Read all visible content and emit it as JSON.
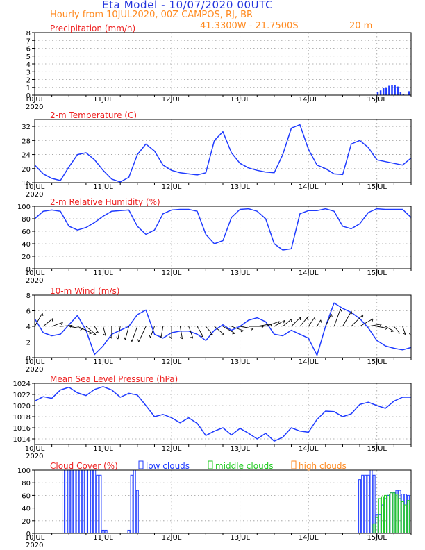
{
  "header": {
    "title": "Eta Model - 10/07/2020 00UTC",
    "subtitle": "Hourly from 10JUL2020, 00Z  CAMPOS, RJ, BR",
    "location": "41.3300W - 21.7500S",
    "elevation": "20  m"
  },
  "colors": {
    "title": "#2233dd",
    "subtitle": "#ff8a20",
    "panel_title": "#ee2222",
    "series": "#1f3bff",
    "grid": "#999999",
    "low_clouds": "#1f3bff",
    "middle_clouds": "#22cc22",
    "high_clouds": "#ff8a20"
  },
  "x_axis": {
    "ticks": [
      "10JUL",
      "11JUL",
      "12JUL",
      "13JUL",
      "14JUL",
      "15JUL"
    ],
    "year": "2020",
    "start_hour": 0,
    "end_hour": 132
  },
  "chart_data": [
    {
      "type": "bar",
      "title": "Precipitation (mm/h)",
      "ylim": [
        0,
        8
      ],
      "yticks": [
        0,
        1,
        2,
        3,
        4,
        5,
        6,
        7,
        8
      ],
      "x_hours": [
        120,
        121,
        122,
        123,
        124,
        125,
        126,
        127,
        128,
        129,
        130,
        131
      ],
      "values": [
        0.4,
        0.6,
        0.9,
        1.0,
        1.2,
        1.3,
        1.3,
        1.1,
        0.4,
        0.1,
        0.0,
        0.5
      ]
    },
    {
      "type": "line",
      "title": "2-m Temperature (C)",
      "ylim": [
        16,
        34
      ],
      "yticks": [
        16,
        20,
        24,
        28,
        32
      ],
      "x_hours": [
        0,
        3,
        6,
        9,
        12,
        15,
        18,
        21,
        24,
        27,
        30,
        33,
        36,
        39,
        42,
        45,
        48,
        51,
        54,
        57,
        60,
        63,
        66,
        69,
        72,
        75,
        78,
        81,
        84,
        87,
        90,
        93,
        96,
        99,
        102,
        105,
        108,
        111,
        114,
        117,
        120,
        123,
        126,
        129,
        132
      ],
      "values": [
        21,
        18.5,
        17.2,
        16.6,
        20.5,
        24,
        24.5,
        22.5,
        19.5,
        17,
        16.2,
        17.5,
        24,
        27,
        25,
        21,
        19.5,
        18.8,
        18.5,
        18.2,
        18.8,
        28,
        30.5,
        24.5,
        21.5,
        20.2,
        19.5,
        19,
        18.8,
        24,
        31.5,
        32.5,
        25.5,
        21,
        20,
        18.5,
        18.3,
        27,
        28,
        26,
        22.5,
        22,
        21.5,
        21,
        23
      ]
    },
    {
      "type": "line",
      "title": "2-m Relative Humidity (%)",
      "ylim": [
        0,
        100
      ],
      "yticks": [
        0,
        20,
        40,
        60,
        80,
        100
      ],
      "x_hours": [
        0,
        3,
        6,
        9,
        12,
        15,
        18,
        21,
        24,
        27,
        30,
        33,
        36,
        39,
        42,
        45,
        48,
        51,
        54,
        57,
        60,
        63,
        66,
        69,
        72,
        75,
        78,
        81,
        84,
        87,
        90,
        93,
        96,
        99,
        102,
        105,
        108,
        111,
        114,
        117,
        120,
        123,
        126,
        129,
        132
      ],
      "values": [
        80,
        92,
        94,
        92,
        68,
        62,
        66,
        74,
        84,
        92,
        93,
        94,
        68,
        55,
        62,
        88,
        94,
        95,
        95,
        92,
        55,
        40,
        45,
        82,
        95,
        96,
        92,
        80,
        40,
        30,
        32,
        88,
        93,
        93,
        96,
        92,
        68,
        64,
        72,
        90,
        96,
        95,
        95,
        95,
        82
      ]
    },
    {
      "type": "line",
      "title": "10-m Wind (m/s)",
      "ylim": [
        0,
        8
      ],
      "yticks": [
        0,
        2,
        4,
        6,
        8
      ],
      "x_hours": [
        0,
        3,
        6,
        9,
        12,
        15,
        18,
        21,
        24,
        27,
        30,
        33,
        36,
        39,
        42,
        45,
        48,
        51,
        54,
        57,
        60,
        63,
        66,
        69,
        72,
        75,
        78,
        81,
        84,
        87,
        90,
        93,
        96,
        99,
        102,
        105,
        108,
        111,
        114,
        117,
        120,
        123,
        126,
        129,
        132
      ],
      "values": [
        5,
        3.2,
        2.8,
        3.0,
        4.2,
        5.4,
        3.5,
        0.4,
        1.5,
        3.0,
        3.5,
        4.0,
        5.5,
        6.1,
        3.0,
        2.5,
        3.2,
        3.4,
        3.4,
        3.0,
        2.2,
        3.5,
        4.2,
        3.5,
        4.0,
        4.8,
        5.1,
        4.6,
        3.0,
        2.8,
        3.5,
        3.0,
        2.5,
        0.3,
        4.0,
        7.0,
        6.3,
        5.8,
        5.0,
        3.8,
        2.2,
        1.5,
        1.2,
        1.0,
        1.3
      ],
      "barb_directions_deg": [
        30,
        50,
        70,
        85,
        100,
        115,
        130,
        150,
        165,
        180,
        190,
        195,
        200,
        205,
        200,
        190,
        180,
        170,
        160,
        150,
        140,
        130,
        120,
        110,
        100,
        90,
        80,
        70,
        60,
        50,
        45,
        40,
        35,
        30,
        25,
        20,
        30,
        45,
        60,
        80,
        100,
        120,
        140,
        160,
        180
      ]
    },
    {
      "type": "line",
      "title": "Mean Sea Level Pressure (hPa)",
      "ylim": [
        1013,
        1024
      ],
      "yticks": [
        1014,
        1016,
        1018,
        1020,
        1022,
        1024
      ],
      "x_hours": [
        0,
        3,
        6,
        9,
        12,
        15,
        18,
        21,
        24,
        27,
        30,
        33,
        36,
        39,
        42,
        45,
        48,
        51,
        54,
        57,
        60,
        63,
        66,
        69,
        72,
        75,
        78,
        81,
        84,
        87,
        90,
        93,
        96,
        99,
        102,
        105,
        108,
        111,
        114,
        117,
        120,
        123,
        126,
        129,
        132
      ],
      "values": [
        1020.8,
        1021.6,
        1021.3,
        1022.8,
        1023.3,
        1022.3,
        1021.8,
        1022.9,
        1023.4,
        1022.8,
        1021.5,
        1022.2,
        1021.9,
        1020.0,
        1018.0,
        1018.4,
        1017.8,
        1016.9,
        1017.8,
        1016.8,
        1014.6,
        1015.4,
        1016.0,
        1014.7,
        1015.9,
        1015.0,
        1014.0,
        1015.0,
        1013.6,
        1014.3,
        1016.0,
        1015.4,
        1015.2,
        1017.5,
        1019.0,
        1018.9,
        1018.0,
        1018.5,
        1020.2,
        1020.6,
        1020.0,
        1019.5,
        1020.8,
        1021.5,
        1021.5
      ]
    },
    {
      "type": "bar",
      "title": "Cloud Cover (%)",
      "ylim": [
        0,
        100
      ],
      "yticks": [
        0,
        20,
        40,
        60,
        80,
        100
      ],
      "legend": [
        "low clouds",
        "middle clouds",
        "high clouds"
      ],
      "series": [
        {
          "name": "low clouds",
          "x_hours": [
            10,
            11,
            12,
            13,
            14,
            15,
            16,
            17,
            18,
            19,
            20,
            21,
            22,
            23,
            24,
            25,
            26,
            27,
            28,
            29,
            30,
            31,
            32,
            33,
            34,
            35,
            36,
            37,
            38,
            39,
            40,
            41,
            42,
            43,
            44,
            45,
            46,
            47,
            48,
            49,
            50,
            51,
            52,
            53,
            54,
            55,
            56,
            57,
            58,
            59,
            60,
            61,
            62,
            63,
            64,
            65,
            66,
            67,
            68,
            69,
            70,
            71,
            72,
            73,
            74,
            75,
            76,
            77,
            78,
            79,
            80,
            81,
            82,
            83,
            84,
            85,
            86,
            87,
            88,
            89,
            90,
            91,
            92,
            93,
            94,
            95,
            96,
            97,
            98,
            99,
            100,
            101,
            102,
            103,
            104,
            105,
            106,
            107,
            108,
            109,
            110,
            111,
            112,
            113,
            114,
            115,
            116,
            117,
            118,
            119,
            120,
            121,
            122,
            123,
            124,
            125,
            126,
            127,
            128,
            129,
            130,
            131
          ],
          "values": [
            100,
            100,
            100,
            100,
            100,
            100,
            100,
            100,
            100,
            100,
            100,
            100,
            92,
            92,
            5,
            5,
            0,
            0,
            0,
            0,
            0,
            0,
            0,
            5,
            92,
            100,
            68,
            0,
            0,
            0,
            0,
            0,
            0,
            0,
            0,
            0,
            0,
            0,
            0,
            0,
            0,
            0,
            0,
            0,
            0,
            0,
            0,
            0,
            0,
            0,
            0,
            0,
            0,
            0,
            0,
            0,
            0,
            0,
            0,
            0,
            0,
            0,
            0,
            0,
            0,
            0,
            0,
            0,
            0,
            0,
            0,
            0,
            0,
            0,
            0,
            0,
            0,
            0,
            0,
            0,
            0,
            0,
            0,
            0,
            0,
            0,
            0,
            0,
            0,
            0,
            0,
            0,
            0,
            0,
            0,
            0,
            0,
            0,
            0,
            0,
            0,
            0,
            0,
            0,
            85,
            92,
            92,
            92,
            100,
            92,
            30,
            30,
            45,
            55,
            60,
            65,
            65,
            68,
            68,
            62,
            62,
            60
          ]
        },
        {
          "name": "middle clouds",
          "x_hours": [
            119,
            120,
            121,
            122,
            123,
            124,
            125,
            126,
            127,
            128,
            129,
            130,
            131
          ],
          "values": [
            15,
            25,
            55,
            58,
            60,
            62,
            64,
            64,
            62,
            55,
            50,
            45,
            52
          ]
        },
        {
          "name": "high clouds",
          "x_hours": [],
          "values": []
        }
      ]
    }
  ]
}
